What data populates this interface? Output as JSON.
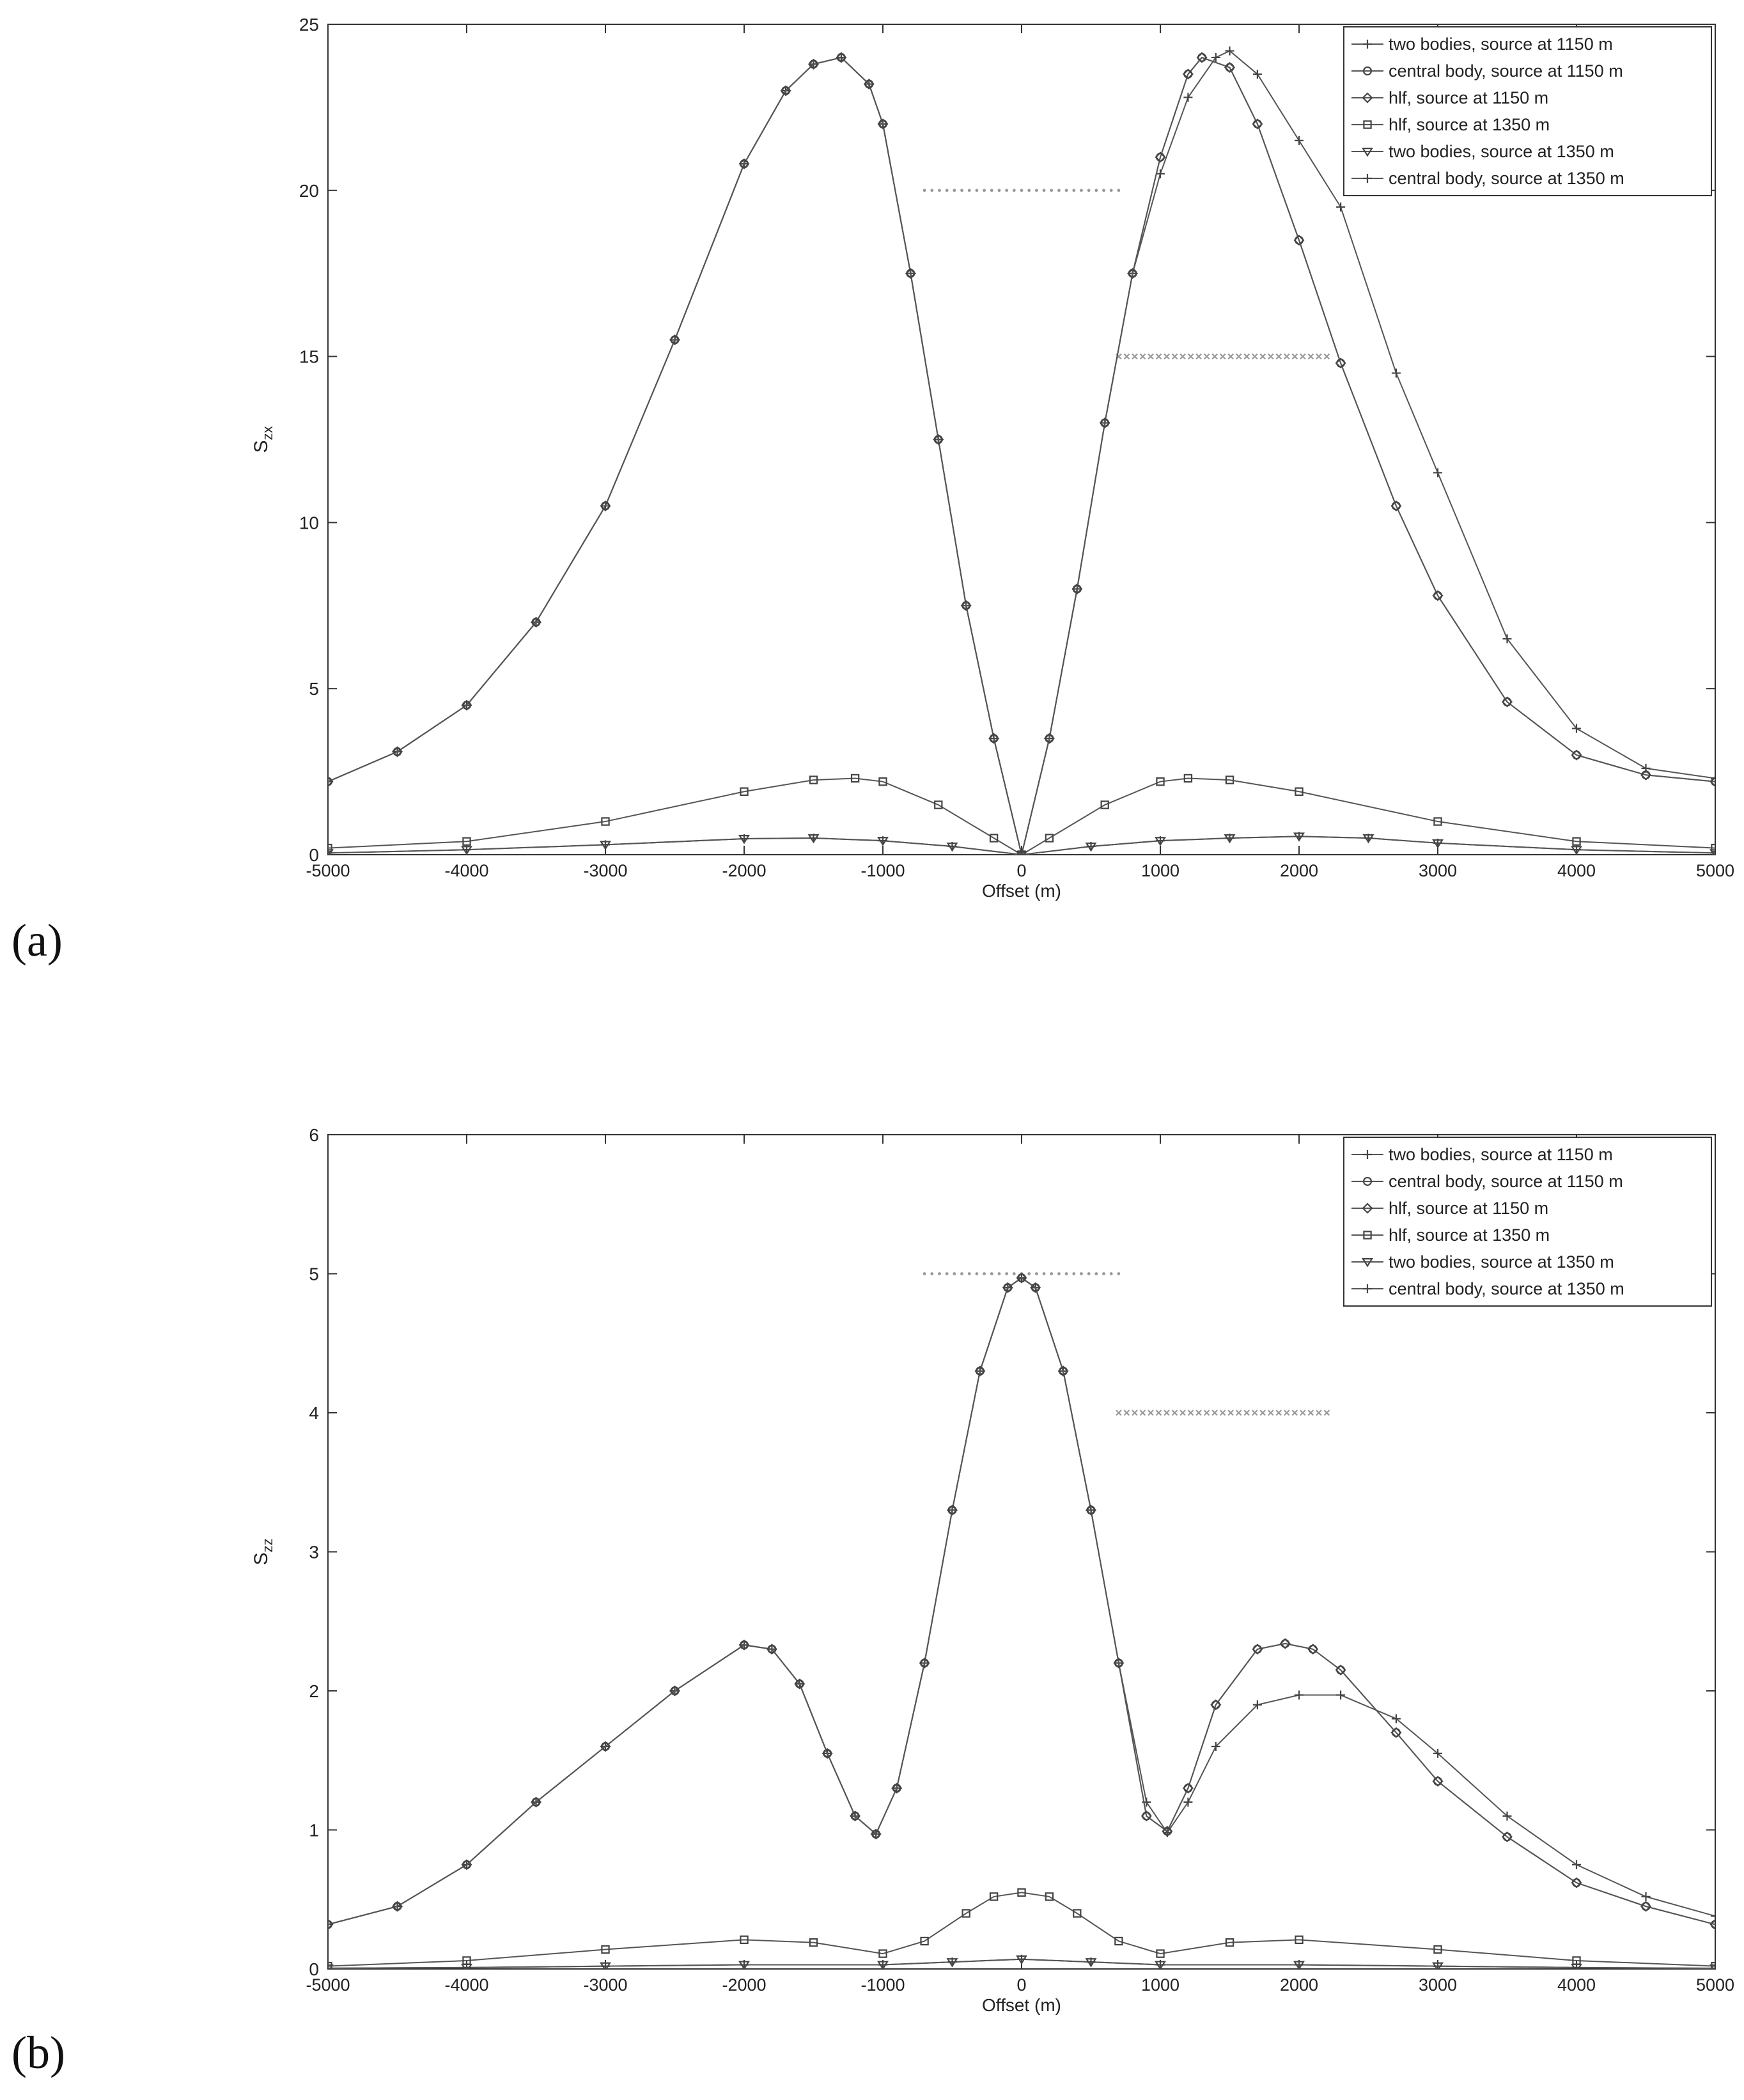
{
  "chart_data": [
    {
      "type": "line",
      "panel_label": "(a)",
      "xlabel": "Offset (m)",
      "ylabel_main": "S",
      "ylabel_sub": "zx",
      "xlim": [
        -5000,
        5000
      ],
      "ylim": [
        0,
        25
      ],
      "xticks": [
        -5000,
        -4000,
        -3000,
        -2000,
        -1000,
        0,
        1000,
        2000,
        3000,
        4000,
        5000
      ],
      "yticks": [
        0,
        5,
        10,
        15,
        20,
        25
      ],
      "grid": false,
      "legend_position": "top-right",
      "colors": {
        "axis": "#333333",
        "line": "#555555",
        "dotted": "#999999"
      },
      "dotted_lines": [
        {
          "x": [
            -700,
            700
          ],
          "y": 20,
          "marker": "dot"
        },
        {
          "x": [
            700,
            2200
          ],
          "y": 15,
          "marker": "x"
        }
      ],
      "series": [
        {
          "name": "two bodies, source at 1150 m",
          "marker": "plus",
          "x": [
            -5000,
            -4500,
            -4000,
            -3500,
            -3000,
            -2500,
            -2000,
            -1700,
            -1500,
            -1300,
            -1100,
            -1000,
            -800,
            -600,
            -400,
            -200,
            0,
            200,
            400,
            600,
            800,
            1000,
            1200,
            1400,
            1500,
            1700,
            2000,
            2300,
            2700,
            3000,
            3500,
            4000,
            4500,
            5000
          ],
          "y": [
            2.2,
            3.1,
            4.5,
            7.0,
            10.5,
            15.5,
            20.8,
            23.0,
            23.8,
            24.0,
            23.2,
            22.0,
            17.5,
            12.5,
            7.5,
            3.5,
            0,
            3.5,
            8.0,
            13.0,
            17.5,
            20.5,
            22.8,
            24.0,
            24.2,
            23.5,
            21.5,
            19.5,
            14.5,
            11.5,
            6.5,
            3.8,
            2.6,
            2.3
          ]
        },
        {
          "name": "central body, source at 1150 m",
          "marker": "circle",
          "x": [
            -5000,
            -4500,
            -4000,
            -3500,
            -3000,
            -2500,
            -2000,
            -1700,
            -1500,
            -1300,
            -1100,
            -1000,
            -800,
            -600,
            -400,
            -200,
            0,
            200,
            400,
            600,
            800,
            1000,
            1200,
            1300,
            1500,
            1700,
            2000,
            2300,
            2700,
            3000,
            3500,
            4000,
            4500,
            5000
          ],
          "y": [
            2.2,
            3.1,
            4.5,
            7.0,
            10.5,
            15.5,
            20.8,
            23.0,
            23.8,
            24.0,
            23.2,
            22.0,
            17.5,
            12.5,
            7.5,
            3.5,
            0,
            3.5,
            8.0,
            13.0,
            17.5,
            21.0,
            23.5,
            24.0,
            23.7,
            22.0,
            18.5,
            14.8,
            10.5,
            7.8,
            4.6,
            3.0,
            2.4,
            2.2
          ]
        },
        {
          "name": "hlf, source at 1150 m",
          "marker": "diamond",
          "x": [
            -5000,
            -4500,
            -4000,
            -3500,
            -3000,
            -2500,
            -2000,
            -1700,
            -1500,
            -1300,
            -1100,
            -1000,
            -800,
            -600,
            -400,
            -200,
            0,
            200,
            400,
            600,
            800,
            1000,
            1200,
            1300,
            1500,
            1700,
            2000,
            2300,
            2700,
            3000,
            3500,
            4000,
            4500,
            5000
          ],
          "y": [
            2.2,
            3.1,
            4.5,
            7.0,
            10.5,
            15.5,
            20.8,
            23.0,
            23.8,
            24.0,
            23.2,
            22.0,
            17.5,
            12.5,
            7.5,
            3.5,
            0,
            3.5,
            8.0,
            13.0,
            17.5,
            21.0,
            23.5,
            24.0,
            23.7,
            22.0,
            18.5,
            14.8,
            10.5,
            7.8,
            4.6,
            3.0,
            2.4,
            2.2
          ]
        },
        {
          "name": "hlf, source at 1350 m",
          "marker": "square",
          "x": [
            -5000,
            -4000,
            -3000,
            -2000,
            -1500,
            -1200,
            -1000,
            -600,
            -200,
            0,
            200,
            600,
            1000,
            1200,
            1500,
            2000,
            3000,
            4000,
            5000
          ],
          "y": [
            0.2,
            0.4,
            1.0,
            1.9,
            2.25,
            2.3,
            2.2,
            1.5,
            0.5,
            0,
            0.5,
            1.5,
            2.2,
            2.3,
            2.25,
            1.9,
            1.0,
            0.4,
            0.2
          ]
        },
        {
          "name": "two bodies, source at 1350 m",
          "marker": "triangle-down",
          "x": [
            -5000,
            -4000,
            -3000,
            -2000,
            -1500,
            -1000,
            -500,
            0,
            500,
            1000,
            1500,
            2000,
            2500,
            3000,
            4000,
            5000
          ],
          "y": [
            0.05,
            0.15,
            0.3,
            0.48,
            0.5,
            0.42,
            0.25,
            0,
            0.25,
            0.42,
            0.5,
            0.55,
            0.5,
            0.35,
            0.15,
            0.05
          ]
        },
        {
          "name": "central body, source at 1350 m",
          "marker": "plus",
          "x": [
            -5000,
            -4000,
            -3000,
            -2000,
            -1500,
            -1000,
            -500,
            0,
            500,
            1000,
            1500,
            2000,
            2500,
            3000,
            4000,
            5000
          ],
          "y": [
            0.05,
            0.15,
            0.3,
            0.48,
            0.5,
            0.42,
            0.25,
            0,
            0.25,
            0.42,
            0.5,
            0.55,
            0.5,
            0.35,
            0.15,
            0.05
          ]
        }
      ]
    },
    {
      "type": "line",
      "panel_label": "(b)",
      "xlabel": "Offset (m)",
      "ylabel_main": "S",
      "ylabel_sub": "zz",
      "xlim": [
        -5000,
        5000
      ],
      "ylim": [
        0,
        6
      ],
      "xticks": [
        -5000,
        -4000,
        -3000,
        -2000,
        -1000,
        0,
        1000,
        2000,
        3000,
        4000,
        5000
      ],
      "yticks": [
        0,
        1,
        2,
        3,
        4,
        5,
        6
      ],
      "grid": false,
      "legend_position": "top-right",
      "colors": {
        "axis": "#333333",
        "line": "#555555",
        "dotted": "#999999"
      },
      "dotted_lines": [
        {
          "x": [
            -700,
            700
          ],
          "y": 5,
          "marker": "dot"
        },
        {
          "x": [
            700,
            2200
          ],
          "y": 4,
          "marker": "x"
        }
      ],
      "series": [
        {
          "name": "two bodies, source at 1150 m",
          "marker": "plus",
          "x": [
            -5000,
            -4500,
            -4000,
            -3500,
            -3000,
            -2500,
            -2000,
            -1800,
            -1600,
            -1400,
            -1200,
            -1050,
            -900,
            -700,
            -500,
            -300,
            -100,
            0,
            100,
            300,
            500,
            700,
            900,
            1050,
            1200,
            1400,
            1700,
            2000,
            2300,
            2700,
            3000,
            3500,
            4000,
            4500,
            5000
          ],
          "y": [
            0.32,
            0.45,
            0.75,
            1.2,
            1.6,
            2.0,
            2.33,
            2.3,
            2.05,
            1.55,
            1.1,
            0.97,
            1.3,
            2.2,
            3.3,
            4.3,
            4.9,
            4.97,
            4.9,
            4.3,
            3.3,
            2.2,
            1.2,
            0.98,
            1.2,
            1.6,
            1.9,
            1.97,
            1.97,
            1.8,
            1.55,
            1.1,
            0.75,
            0.52,
            0.38
          ]
        },
        {
          "name": "central body, source at 1150 m",
          "marker": "circle",
          "x": [
            -5000,
            -4500,
            -4000,
            -3500,
            -3000,
            -2500,
            -2000,
            -1800,
            -1600,
            -1400,
            -1200,
            -1050,
            -900,
            -700,
            -500,
            -300,
            -100,
            0,
            100,
            300,
            500,
            700,
            900,
            1050,
            1200,
            1400,
            1700,
            1900,
            2100,
            2300,
            2700,
            3000,
            3500,
            4000,
            4500,
            5000
          ],
          "y": [
            0.32,
            0.45,
            0.75,
            1.2,
            1.6,
            2.0,
            2.33,
            2.3,
            2.05,
            1.55,
            1.1,
            0.97,
            1.3,
            2.2,
            3.3,
            4.3,
            4.9,
            4.97,
            4.9,
            4.3,
            3.3,
            2.2,
            1.1,
            0.99,
            1.3,
            1.9,
            2.3,
            2.34,
            2.3,
            2.15,
            1.7,
            1.35,
            0.95,
            0.62,
            0.45,
            0.32
          ]
        },
        {
          "name": "hlf, source at 1150 m",
          "marker": "diamond",
          "x": [
            -5000,
            -4500,
            -4000,
            -3500,
            -3000,
            -2500,
            -2000,
            -1800,
            -1600,
            -1400,
            -1200,
            -1050,
            -900,
            -700,
            -500,
            -300,
            -100,
            0,
            100,
            300,
            500,
            700,
            900,
            1050,
            1200,
            1400,
            1700,
            1900,
            2100,
            2300,
            2700,
            3000,
            3500,
            4000,
            4500,
            5000
          ],
          "y": [
            0.32,
            0.45,
            0.75,
            1.2,
            1.6,
            2.0,
            2.33,
            2.3,
            2.05,
            1.55,
            1.1,
            0.97,
            1.3,
            2.2,
            3.3,
            4.3,
            4.9,
            4.97,
            4.9,
            4.3,
            3.3,
            2.2,
            1.1,
            0.99,
            1.3,
            1.9,
            2.3,
            2.34,
            2.3,
            2.15,
            1.7,
            1.35,
            0.95,
            0.62,
            0.45,
            0.32
          ]
        },
        {
          "name": "hlf, source at 1350 m",
          "marker": "square",
          "x": [
            -5000,
            -4000,
            -3000,
            -2000,
            -1500,
            -1000,
            -700,
            -400,
            -200,
            0,
            200,
            400,
            700,
            1000,
            1500,
            2000,
            3000,
            4000,
            5000
          ],
          "y": [
            0.02,
            0.06,
            0.14,
            0.21,
            0.19,
            0.11,
            0.2,
            0.4,
            0.52,
            0.55,
            0.52,
            0.4,
            0.2,
            0.11,
            0.19,
            0.21,
            0.14,
            0.06,
            0.02
          ]
        },
        {
          "name": "two bodies, source at 1350 m",
          "marker": "triangle-down",
          "x": [
            -5000,
            -4000,
            -3000,
            -2000,
            -1000,
            -500,
            0,
            500,
            1000,
            2000,
            3000,
            4000,
            5000
          ],
          "y": [
            0.005,
            0.01,
            0.02,
            0.03,
            0.03,
            0.05,
            0.07,
            0.05,
            0.03,
            0.03,
            0.02,
            0.01,
            0.005
          ]
        },
        {
          "name": "central body, source at 1350 m",
          "marker": "plus",
          "x": [
            -5000,
            -4000,
            -3000,
            -2000,
            -1000,
            -500,
            0,
            500,
            1000,
            2000,
            3000,
            4000,
            5000
          ],
          "y": [
            0.005,
            0.01,
            0.02,
            0.03,
            0.03,
            0.05,
            0.07,
            0.05,
            0.03,
            0.03,
            0.02,
            0.01,
            0.005
          ]
        }
      ]
    }
  ]
}
